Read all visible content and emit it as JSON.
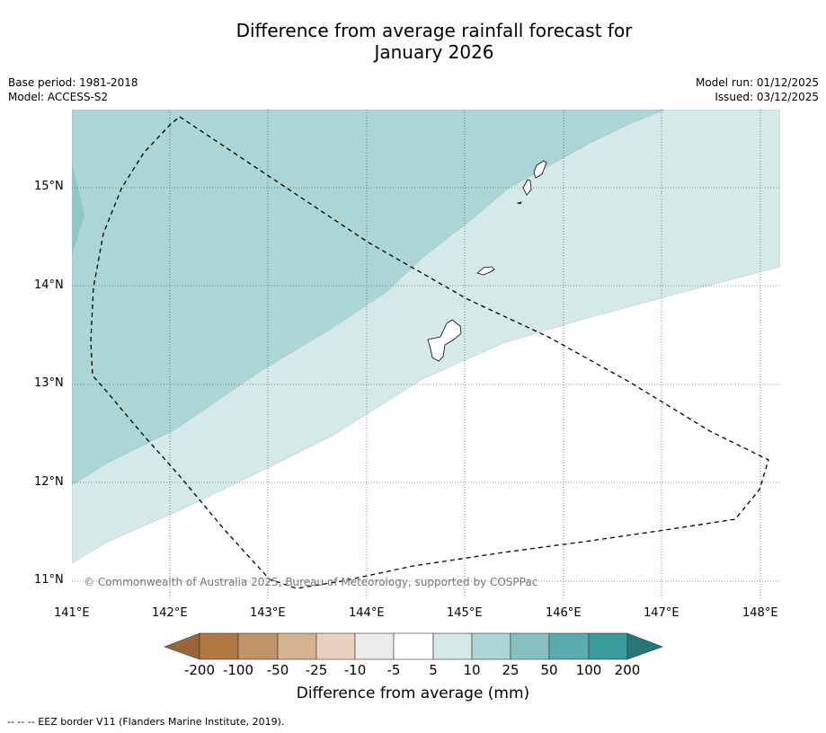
{
  "title": {
    "line1": "Difference from average rainfall forecast for",
    "line2": "January 2026"
  },
  "meta": {
    "base_period": "Base period: 1981-2018",
    "model": "Model: ACCESS-S2",
    "model_run": "Model run: 01/12/2025",
    "issued": "Issued: 03/12/2025"
  },
  "map": {
    "lat_labels": [
      "15°N",
      "14°N",
      "13°N",
      "12°N",
      "11°N"
    ],
    "lon_labels": [
      "141°E",
      "142°E",
      "143°E",
      "144°E",
      "145°E",
      "146°E",
      "147°E",
      "148°E"
    ],
    "copyright": "© Commonwealth of Australia 2025, Bureau of Meteorology, supported by COSPPac",
    "colors": {
      "light_teal": "#d5e9e8",
      "mid_teal": "#acd5d5",
      "darker_teal": "#87c2c3"
    }
  },
  "colorbar": {
    "labels": [
      "-200",
      "-100",
      "-50",
      "-25",
      "-10",
      "-5",
      "5",
      "10",
      "25",
      "50",
      "100",
      "200"
    ],
    "colors": [
      "#9b6434",
      "#b07840",
      "#c09468",
      "#d4b18f",
      "#e8d2bf",
      "#ececea",
      "#ffffff",
      "#d5e9e8",
      "#acd5d5",
      "#86c1c2",
      "#5aadaf",
      "#359b9b",
      "#247677"
    ],
    "title": "Difference from average (mm)"
  },
  "footnote": "--  --  -- EEZ border V11 (Flanders Marine Institute, 2019)."
}
